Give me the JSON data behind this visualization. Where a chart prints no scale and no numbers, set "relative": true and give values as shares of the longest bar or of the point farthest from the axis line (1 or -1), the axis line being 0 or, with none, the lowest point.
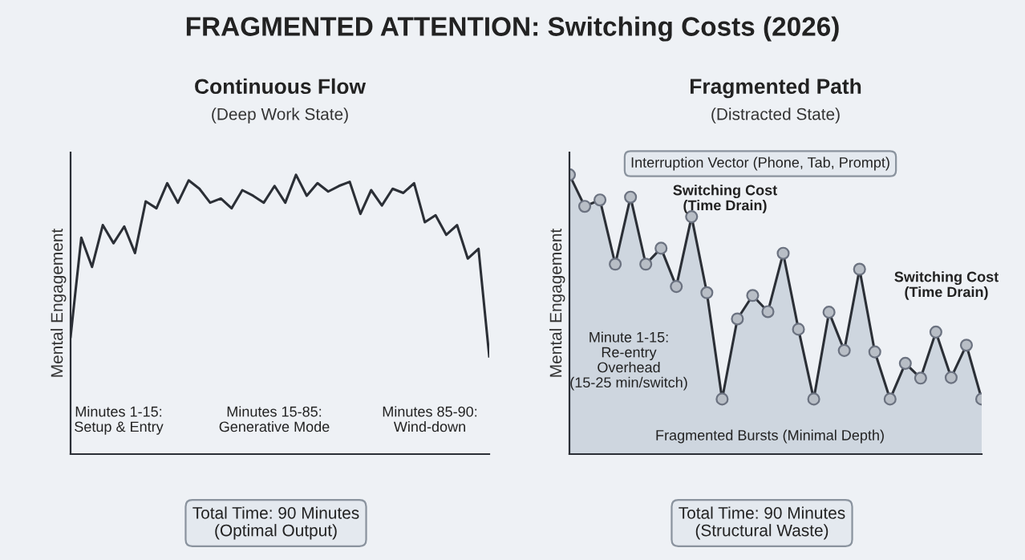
{
  "chart_data": [
    {
      "type": "other",
      "title": "FRAGMENTED ATTENTION: Switching Costs (2026)"
    },
    {
      "type": "line",
      "title": "Continuous Flow",
      "subtitle": "(Deep Work State)",
      "ylabel": "Mental Engagement",
      "relative": true,
      "grid": false,
      "legend": false,
      "categories": [
        null,
        null,
        null,
        null,
        null,
        null,
        null,
        null,
        null,
        null,
        null,
        null,
        null,
        null,
        null,
        null,
        null,
        null,
        null,
        null,
        null,
        null,
        null,
        null,
        null,
        null,
        null,
        null,
        null,
        null,
        null,
        null,
        null,
        null,
        null,
        null,
        null,
        null,
        null,
        null
      ],
      "series": [
        {
          "color": "#2b2f36",
          "values": [
            0.42,
            0.775,
            0.67,
            0.82,
            0.755,
            0.815,
            0.72,
            0.905,
            0.88,
            0.97,
            0.9,
            0.98,
            0.95,
            0.9,
            0.915,
            0.88,
            0.945,
            0.925,
            0.9,
            0.96,
            0.9,
            1.0,
            0.925,
            0.97,
            0.94,
            0.96,
            0.975,
            0.86,
            0.945,
            0.89,
            0.95,
            0.935,
            0.97,
            0.83,
            0.855,
            0.785,
            0.82,
            0.7,
            0.735,
            0.35
          ]
        }
      ],
      "annotations": [
        "Minutes 1-15:\nSetup & Entry",
        "Minutes 15-85:\nGenerative Mode",
        "Minutes 85-90:\nWind-down",
        "Total Time: 90 Minutes\n(Optimal Output)"
      ]
    },
    {
      "type": "area",
      "title": "Fragmented Path",
      "subtitle": "(Distracted State)",
      "ylabel": "Mental Engagement",
      "relative": true,
      "grid": false,
      "legend": false,
      "marker": "circle",
      "categories": [
        null,
        null,
        null,
        null,
        null,
        null,
        null,
        null,
        null,
        null,
        null,
        null,
        null,
        null,
        null,
        null,
        null,
        null,
        null,
        null,
        null,
        null,
        null,
        null,
        null,
        null,
        null,
        null
      ],
      "series": [
        {
          "color": "#2b2f36",
          "values": [
            1.0,
            0.887,
            0.91,
            0.68,
            0.92,
            0.68,
            0.737,
            0.6,
            0.85,
            0.578,
            0.197,
            0.484,
            0.568,
            0.51,
            0.719,
            0.447,
            0.197,
            0.508,
            0.371,
            0.662,
            0.366,
            0.197,
            0.325,
            0.272,
            0.437,
            0.274,
            0.39,
            0.197
          ]
        }
      ],
      "annotations": [
        "Interruption Vector (Phone, Tab, Prompt)",
        "Switching Cost\n(Time Drain)",
        "Switching Cost\n(Time Drain)",
        "Minute 1-15:\nRe-entry\nOverhead\n(15-25 min/switch)",
        "Fragmented Bursts (Minimal Depth)",
        "Total Time: 90 Minutes\n(Structural Waste)"
      ]
    }
  ]
}
